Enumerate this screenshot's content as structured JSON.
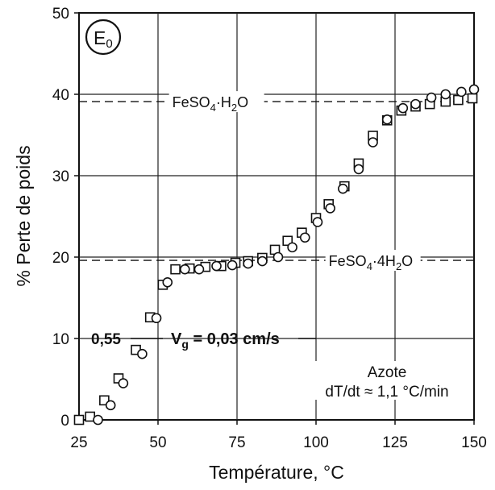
{
  "chart_data": {
    "type": "scatter",
    "panel_label": "E",
    "panel_label_sub": "0",
    "xlabel": "Température, °C",
    "ylabel": "% Perte de poids",
    "xlim": [
      25,
      150
    ],
    "ylim": [
      0,
      50
    ],
    "xticks": [
      "25",
      "50",
      "75",
      "100",
      "125",
      "150"
    ],
    "yticks": [
      "0",
      "10",
      "20",
      "30",
      "40",
      "50"
    ],
    "grid": true,
    "reference_lines": [
      {
        "y": 39.1,
        "label_main": "FeSO",
        "label_sub": "4",
        "label_rest": "·H",
        "label_sub2": "2",
        "label_end": "O"
      },
      {
        "y": 19.6,
        "label_main": "FeSO",
        "label_sub": "4",
        "label_rest": "·4H",
        "label_sub2": "2",
        "label_end": "O"
      }
    ],
    "annotations": {
      "rate_value": "0,55",
      "vg_main": "V",
      "vg_sub": "g",
      "vg_rest": " = 0,03 cm/s",
      "atmosphere": "Azote",
      "heating_rate": "dT/dt ≈ 1,1 °C/min"
    },
    "series": [
      {
        "marker": "square",
        "points": [
          [
            25,
            0
          ],
          [
            28.5,
            0.4
          ],
          [
            33,
            2.4
          ],
          [
            37.5,
            5.1
          ],
          [
            43,
            8.6
          ],
          [
            47.5,
            12.6
          ],
          [
            51.5,
            16.6
          ],
          [
            55.5,
            18.5
          ],
          [
            60,
            18.6
          ],
          [
            65,
            18.8
          ],
          [
            70,
            18.9
          ],
          [
            74.5,
            19.3
          ],
          [
            78.5,
            19.5
          ],
          [
            83,
            19.9
          ],
          [
            87,
            20.9
          ],
          [
            91,
            22.0
          ],
          [
            95.5,
            23.0
          ],
          [
            100,
            24.8
          ],
          [
            104,
            26.5
          ],
          [
            109,
            28.7
          ],
          [
            113.5,
            31.5
          ],
          [
            118,
            34.9
          ],
          [
            122.5,
            36.8
          ],
          [
            127,
            38.0
          ],
          [
            131.5,
            38.5
          ],
          [
            136,
            38.8
          ],
          [
            141,
            39.1
          ],
          [
            145,
            39.3
          ],
          [
            149.5,
            39.5
          ]
        ]
      },
      {
        "marker": "circle",
        "points": [
          [
            31,
            0
          ],
          [
            35,
            1.8
          ],
          [
            39,
            4.5
          ],
          [
            45,
            8.1
          ],
          [
            49.5,
            12.5
          ],
          [
            53,
            16.9
          ],
          [
            58.5,
            18.5
          ],
          [
            63,
            18.5
          ],
          [
            68.5,
            18.9
          ],
          [
            73.5,
            19.0
          ],
          [
            78.5,
            19.2
          ],
          [
            83,
            19.5
          ],
          [
            88,
            20.0
          ],
          [
            92.5,
            21.2
          ],
          [
            96.5,
            22.4
          ],
          [
            100.5,
            24.3
          ],
          [
            104.5,
            26.0
          ],
          [
            108.5,
            28.4
          ],
          [
            113.5,
            30.8
          ],
          [
            118,
            34.1
          ],
          [
            122.5,
            36.9
          ],
          [
            127.5,
            38.3
          ],
          [
            131.5,
            38.8
          ],
          [
            136.5,
            39.6
          ],
          [
            141,
            40.0
          ],
          [
            146,
            40.3
          ],
          [
            150,
            40.6
          ]
        ]
      }
    ]
  }
}
